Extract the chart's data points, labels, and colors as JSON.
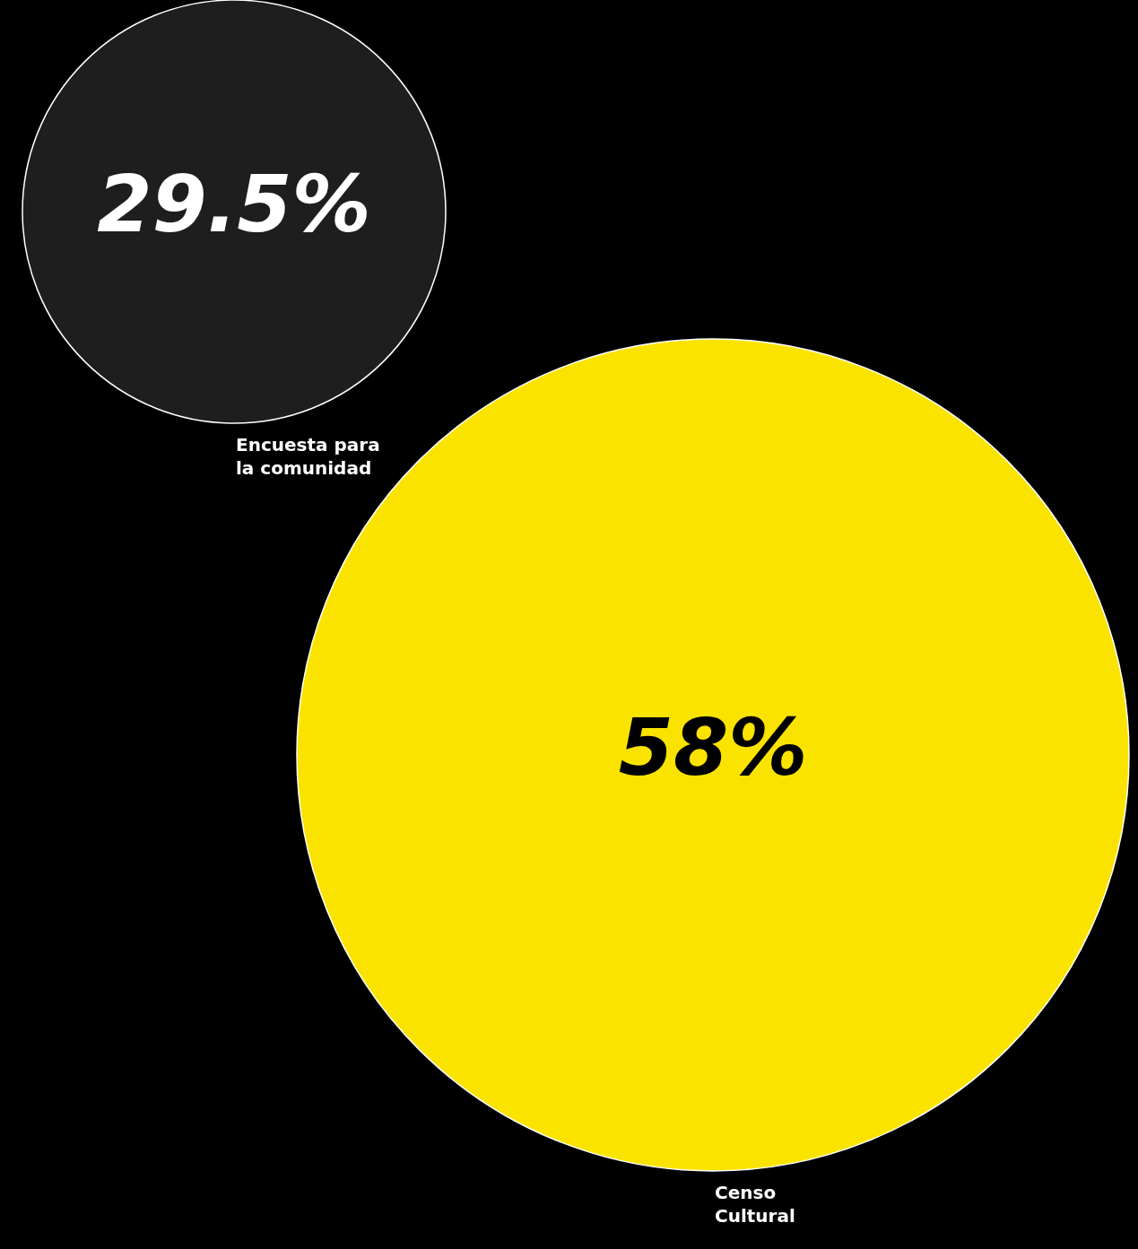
{
  "chart_data": {
    "type": "other",
    "categories": [
      "Encuesta para la comunidad",
      "Censo Cultural"
    ],
    "values": [
      29.5,
      58
    ],
    "value_labels": [
      "29.5%",
      "58%"
    ],
    "colors": [
      "#1e1e1e",
      "#fbe300"
    ]
  }
}
